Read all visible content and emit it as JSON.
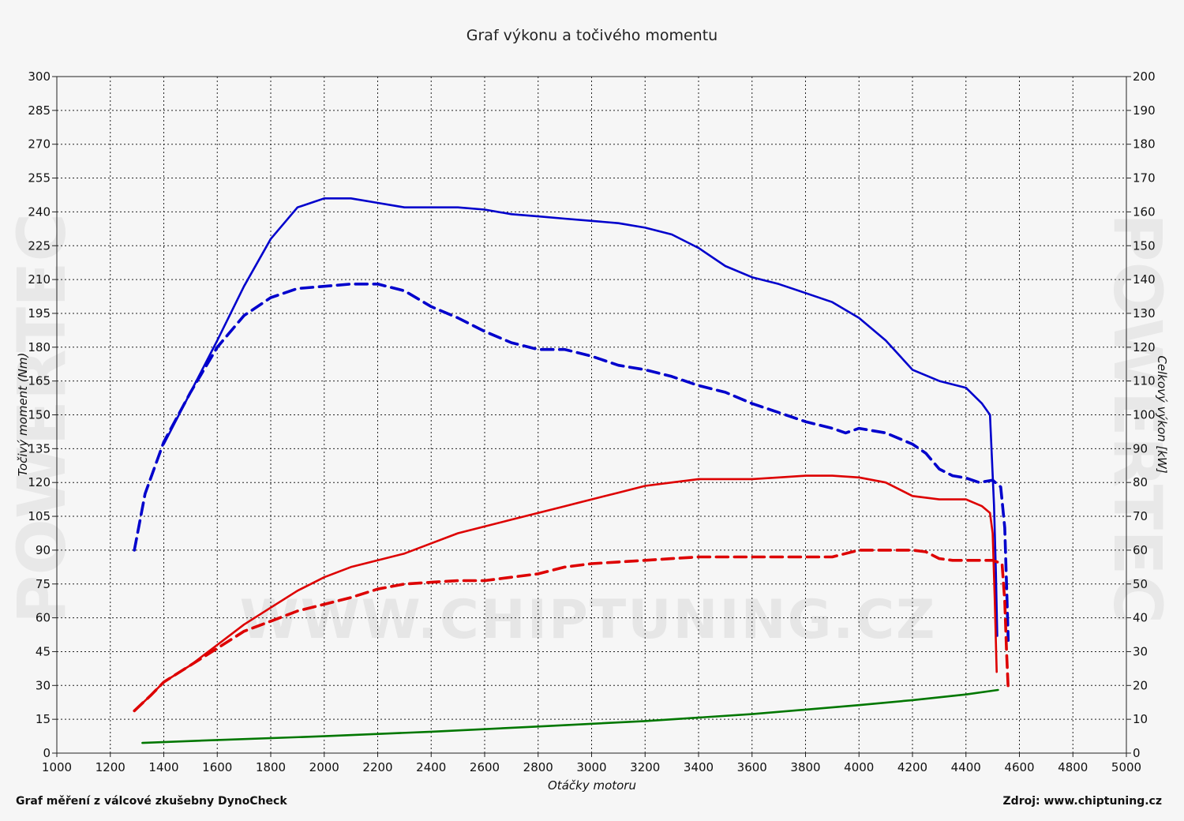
{
  "title": "Graf výkonu a točivého momentu",
  "footer": {
    "left": "Graf měření z válcové zkušebny DynoCheck",
    "right": "Zdroj: www.chiptuning.cz"
  },
  "watermark": {
    "center": "WWW.CHIPTUNING.CZ",
    "side": "POWERTEC"
  },
  "chart_data": {
    "type": "line",
    "title": "Graf výkonu a točivého momentu",
    "xlabel": "Otáčky motoru",
    "ylabel_left": "Točivý moment (Nm)",
    "ylabel_right": "Celkový výkon [kW]",
    "xlim": [
      1000,
      5000
    ],
    "ylim_left": [
      0,
      300
    ],
    "ylim_right": [
      0,
      200
    ],
    "x_ticks": [
      "1000",
      "1200",
      "1400",
      "1600",
      "1800",
      "2000",
      "2200",
      "2400",
      "2600",
      "2800",
      "3000",
      "3200",
      "3400",
      "3600",
      "3800",
      "4000",
      "4200",
      "4400",
      "4600",
      "4800",
      "5000"
    ],
    "y_left_ticks": [
      "0",
      "15",
      "30",
      "45",
      "60",
      "75",
      "90",
      "105",
      "120",
      "135",
      "150",
      "165",
      "180",
      "195",
      "210",
      "225",
      "240",
      "255",
      "270",
      "285",
      "300"
    ],
    "y_right_ticks": [
      "0",
      "10",
      "20",
      "30",
      "40",
      "50",
      "60",
      "70",
      "80",
      "90",
      "100",
      "110",
      "120",
      "130",
      "140",
      "150",
      "160",
      "170",
      "180",
      "190",
      "200"
    ],
    "grid": true,
    "series": [
      {
        "axis": "left",
        "color": "#0000cc",
        "style": "solid",
        "points": [
          [
            1400,
            137
          ],
          [
            1500,
            160
          ],
          [
            1600,
            183
          ],
          [
            1700,
            207
          ],
          [
            1800,
            228
          ],
          [
            1900,
            242
          ],
          [
            2000,
            246
          ],
          [
            2100,
            246
          ],
          [
            2200,
            244
          ],
          [
            2300,
            242
          ],
          [
            2400,
            242
          ],
          [
            2500,
            242
          ],
          [
            2600,
            241
          ],
          [
            2700,
            239
          ],
          [
            2800,
            238
          ],
          [
            2900,
            237
          ],
          [
            3000,
            236
          ],
          [
            3100,
            235
          ],
          [
            3200,
            233
          ],
          [
            3300,
            230
          ],
          [
            3400,
            224
          ],
          [
            3500,
            216
          ],
          [
            3600,
            211
          ],
          [
            3700,
            208
          ],
          [
            3800,
            204
          ],
          [
            3900,
            200
          ],
          [
            4000,
            193
          ],
          [
            4100,
            183
          ],
          [
            4200,
            170
          ],
          [
            4300,
            165
          ],
          [
            4400,
            162
          ],
          [
            4460,
            155
          ],
          [
            4490,
            150
          ],
          [
            4505,
            110
          ],
          [
            4512,
            80
          ],
          [
            4517,
            52
          ]
        ]
      },
      {
        "axis": "left",
        "color": "#0000cc",
        "style": "dashed",
        "points": [
          [
            1290,
            90
          ],
          [
            1330,
            115
          ],
          [
            1400,
            138
          ],
          [
            1500,
            160
          ],
          [
            1600,
            180
          ],
          [
            1700,
            194
          ],
          [
            1800,
            202
          ],
          [
            1900,
            206
          ],
          [
            2000,
            207
          ],
          [
            2100,
            208
          ],
          [
            2200,
            208
          ],
          [
            2300,
            205
          ],
          [
            2400,
            198
          ],
          [
            2500,
            193
          ],
          [
            2600,
            187
          ],
          [
            2700,
            182
          ],
          [
            2800,
            179
          ],
          [
            2900,
            179
          ],
          [
            3000,
            176
          ],
          [
            3100,
            172
          ],
          [
            3200,
            170
          ],
          [
            3300,
            167
          ],
          [
            3400,
            163
          ],
          [
            3500,
            160
          ],
          [
            3600,
            155
          ],
          [
            3700,
            151
          ],
          [
            3800,
            147
          ],
          [
            3900,
            144
          ],
          [
            3950,
            142
          ],
          [
            4000,
            144
          ],
          [
            4100,
            142
          ],
          [
            4200,
            137
          ],
          [
            4250,
            133
          ],
          [
            4300,
            126
          ],
          [
            4350,
            123
          ],
          [
            4400,
            122
          ],
          [
            4450,
            120
          ],
          [
            4500,
            121
          ],
          [
            4530,
            118
          ],
          [
            4545,
            100
          ],
          [
            4553,
            70
          ],
          [
            4558,
            50
          ]
        ]
      },
      {
        "axis": "right",
        "color": "#dd0000",
        "style": "solid",
        "points": [
          [
            1290,
            12.5
          ],
          [
            1350,
            17
          ],
          [
            1400,
            21
          ],
          [
            1500,
            26
          ],
          [
            1600,
            32
          ],
          [
            1700,
            38
          ],
          [
            1800,
            43
          ],
          [
            1900,
            48
          ],
          [
            2000,
            52
          ],
          [
            2100,
            55
          ],
          [
            2200,
            57
          ],
          [
            2300,
            59
          ],
          [
            2400,
            62
          ],
          [
            2500,
            65
          ],
          [
            2600,
            67
          ],
          [
            2700,
            69
          ],
          [
            2800,
            71
          ],
          [
            2900,
            73
          ],
          [
            3000,
            75
          ],
          [
            3100,
            77
          ],
          [
            3200,
            79
          ],
          [
            3300,
            80
          ],
          [
            3400,
            81
          ],
          [
            3500,
            81
          ],
          [
            3600,
            81
          ],
          [
            3700,
            81.5
          ],
          [
            3800,
            82
          ],
          [
            3900,
            82
          ],
          [
            4000,
            81.5
          ],
          [
            4100,
            80
          ],
          [
            4200,
            76
          ],
          [
            4300,
            75
          ],
          [
            4400,
            75
          ],
          [
            4460,
            73
          ],
          [
            4490,
            71
          ],
          [
            4500,
            65
          ],
          [
            4508,
            45
          ],
          [
            4515,
            24
          ]
        ]
      },
      {
        "axis": "right",
        "color": "#dd0000",
        "style": "dashed",
        "points": [
          [
            1290,
            12.5
          ],
          [
            1350,
            17
          ],
          [
            1400,
            21
          ],
          [
            1500,
            26
          ],
          [
            1600,
            31
          ],
          [
            1700,
            36
          ],
          [
            1800,
            39
          ],
          [
            1900,
            42
          ],
          [
            2000,
            44
          ],
          [
            2100,
            46
          ],
          [
            2200,
            48.5
          ],
          [
            2300,
            50
          ],
          [
            2400,
            50.5
          ],
          [
            2500,
            51
          ],
          [
            2600,
            51
          ],
          [
            2700,
            52
          ],
          [
            2800,
            53
          ],
          [
            2900,
            55
          ],
          [
            3000,
            56
          ],
          [
            3100,
            56.5
          ],
          [
            3200,
            57
          ],
          [
            3300,
            57.5
          ],
          [
            3400,
            58
          ],
          [
            3500,
            58
          ],
          [
            3600,
            58
          ],
          [
            3700,
            58
          ],
          [
            3800,
            58
          ],
          [
            3900,
            58
          ],
          [
            4000,
            60
          ],
          [
            4100,
            60
          ],
          [
            4200,
            60
          ],
          [
            4250,
            59.5
          ],
          [
            4300,
            57.5
          ],
          [
            4350,
            57
          ],
          [
            4400,
            57
          ],
          [
            4450,
            57
          ],
          [
            4500,
            57
          ],
          [
            4535,
            56
          ],
          [
            4545,
            45
          ],
          [
            4552,
            30
          ],
          [
            4558,
            19
          ]
        ]
      },
      {
        "axis": "left",
        "color": "#007700",
        "style": "solid",
        "points": [
          [
            1320,
            4.5
          ],
          [
            1600,
            5.8
          ],
          [
            2000,
            7.5
          ],
          [
            2400,
            9.5
          ],
          [
            2800,
            11.8
          ],
          [
            3200,
            14.2
          ],
          [
            3600,
            17.3
          ],
          [
            4000,
            21.3
          ],
          [
            4200,
            23.5
          ],
          [
            4400,
            26
          ],
          [
            4520,
            28
          ]
        ]
      }
    ]
  }
}
